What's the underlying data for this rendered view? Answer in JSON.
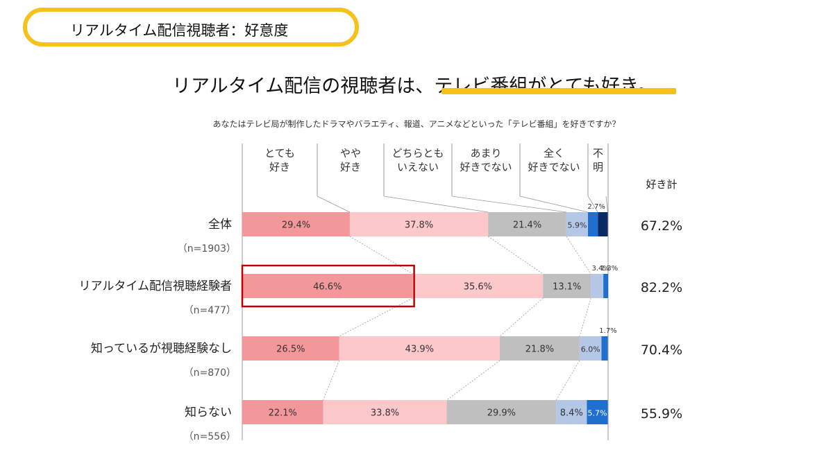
{
  "section_title": "リアルタイム配信視聴者：好意度",
  "headline": "リアルタイム配信の視聴者は、テレビ番組がとても好き。",
  "question": "あなたはテレビ局が制作したドラマやバラエティ、報道、アニメなどといった「テレビ番組」を好きですか？",
  "colors": {
    "accent_yellow": "#f5c21b",
    "highlight_box": "#c00000"
  },
  "chart_data": {
    "type": "bar",
    "orientation": "horizontal",
    "stacked": "100%",
    "unit": "%",
    "categories": [
      "全体",
      "リアルタイム配信視聴経験者",
      "知っているが視聴経験なし",
      "知らない"
    ],
    "sample_sizes": [
      "（n=1903）",
      "（n=477）",
      "（n=870）",
      "（n=556）"
    ],
    "series": [
      {
        "name": "とても\n好き",
        "color": "#f4979b",
        "values": [
          29.4,
          46.6,
          26.5,
          22.1
        ]
      },
      {
        "name": "やや\n好き",
        "color": "#fcc8ca",
        "values": [
          37.8,
          35.6,
          43.9,
          33.8
        ]
      },
      {
        "name": "どちらとも\nいえない",
        "color": "#bfbfbf",
        "values": [
          21.4,
          13.1,
          21.8,
          29.9
        ]
      },
      {
        "name": "あまり\n好きでない",
        "color": "#b4c7e7",
        "values": [
          5.9,
          3.4,
          6.0,
          8.4
        ]
      },
      {
        "name": "全く\n好きでない",
        "color": "#1f6fcf",
        "values": [
          2.7,
          1.3,
          1.7,
          5.7
        ]
      },
      {
        "name": "不\n明",
        "color": "#0a2a66",
        "values": [
          2.7,
          0.0,
          0.0,
          0.0
        ]
      }
    ],
    "data_labels": [
      [
        "29.4%",
        "37.8%",
        "21.4%",
        "5.9%",
        "2.7%",
        ""
      ],
      [
        "46.6%",
        "35.6%",
        "13.1%",
        "3.4%",
        "1.3%",
        ""
      ],
      [
        "26.5%",
        "43.9%",
        "21.8%",
        "6.0%",
        "1.7%",
        ""
      ],
      [
        "22.1%",
        "33.8%",
        "29.9%",
        "8.4%",
        "5.7%",
        ""
      ]
    ],
    "total_header": "好き計",
    "totals": [
      "67.2%",
      "82.2%",
      "70.4%",
      "55.9%"
    ],
    "xlim": [
      0,
      100
    ],
    "grid": false,
    "legend": "top",
    "highlight": {
      "row": 1,
      "series": 0
    }
  }
}
